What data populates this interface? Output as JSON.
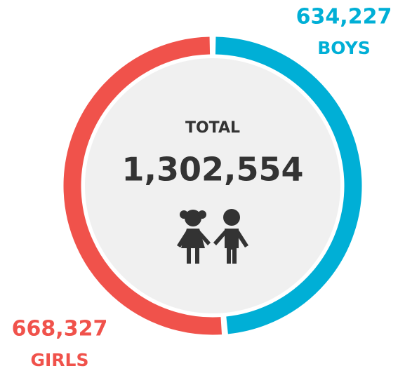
{
  "chart_data": {
    "type": "pie",
    "donut": true,
    "categories": [
      "BOYS",
      "GIRLS"
    ],
    "values": [
      634227,
      668327
    ],
    "value_labels": [
      "634,227",
      "668,327"
    ],
    "colors": [
      "#00afd6",
      "#f0524b"
    ],
    "center_label": "TOTAL",
    "center_value": {
      "value": 1302554,
      "label": "1,302,554"
    }
  }
}
